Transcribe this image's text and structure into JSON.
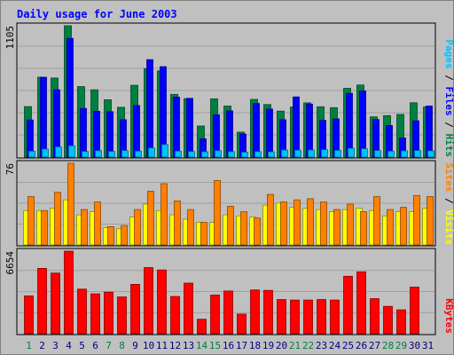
{
  "title": "Daily usage for June 2003",
  "chart_data": [
    {
      "type": "bar",
      "panel": "hits-files-pages",
      "max_label": "1105",
      "ylim": [
        0,
        1105
      ],
      "series": [
        {
          "name": "Hits",
          "color": "#008040",
          "values": [
            425,
            672,
            665,
            1105,
            593,
            566,
            482,
            419,
            604,
            743,
            725,
            528,
            491,
            261,
            490,
            429,
            210,
            485,
            442,
            387,
            421,
            456,
            423,
            416,
            579,
            606,
            338,
            349,
            359,
            457,
            422
          ]
        },
        {
          "name": "Files",
          "color": "#0000ff",
          "values": [
            312,
            671,
            567,
            999,
            409,
            385,
            382,
            314,
            434,
            820,
            761,
            505,
            494,
            154,
            356,
            389,
            194,
            451,
            404,
            314,
            506,
            446,
            309,
            321,
            536,
            556,
            316,
            266,
            161,
            305,
            430
          ]
        },
        {
          "name": "Pages",
          "color": "#00c0ff",
          "values": [
            49,
            68,
            86,
            95,
            48,
            54,
            48,
            55,
            50,
            77,
            105,
            50,
            47,
            45,
            54,
            46,
            41,
            46,
            44,
            60,
            58,
            60,
            63,
            56,
            74,
            70,
            55,
            50,
            53,
            55,
            53
          ]
        }
      ]
    },
    {
      "type": "bar",
      "panel": "visits-sites",
      "max_label": "76",
      "ylim": [
        0,
        76
      ],
      "series": [
        {
          "name": "Visits",
          "color": "#ffff00",
          "values": [
            32,
            32,
            34,
            42,
            28,
            31,
            16,
            15,
            26,
            38,
            32,
            28,
            24,
            21,
            21,
            28,
            27,
            26,
            37,
            39,
            35,
            34,
            33,
            31,
            33,
            34,
            32,
            27,
            31,
            31,
            34
          ]
        },
        {
          "name": "Sites",
          "color": "#ff8000",
          "values": [
            45,
            32,
            49,
            76,
            33,
            40,
            17,
            18,
            33,
            50,
            57,
            41,
            33,
            21,
            60,
            36,
            31,
            25,
            47,
            40,
            42,
            43,
            40,
            33,
            38,
            31,
            45,
            33,
            35,
            46,
            45
          ]
        }
      ]
    },
    {
      "type": "bar",
      "panel": "kbytes",
      "max_label": "6654",
      "ylim": [
        0,
        6654
      ],
      "series": [
        {
          "name": "KBytes",
          "color": "#ff0000",
          "values": [
            3045,
            5268,
            4890,
            6654,
            3594,
            3216,
            3347,
            2964,
            3981,
            5329,
            5136,
            3000,
            4076,
            1166,
            3120,
            3444,
            1581,
            3528,
            3491,
            2756,
            2709,
            2709,
            2756,
            2712,
            4629,
            4985,
            2824,
            2204,
            1922,
            3753,
            0
          ]
        }
      ]
    }
  ],
  "x_labels": [
    "1",
    "2",
    "3",
    "4",
    "5",
    "6",
    "7",
    "8",
    "9",
    "10",
    "11",
    "12",
    "13",
    "14",
    "15",
    "16",
    "17",
    "18",
    "19",
    "20",
    "21",
    "22",
    "23",
    "24",
    "25",
    "26",
    "27",
    "28",
    "29",
    "30",
    "31"
  ],
  "weekend_days": [
    1,
    7,
    8,
    14,
    15,
    21,
    22,
    28,
    29
  ],
  "legend_separator": "/",
  "colors": {
    "background": "#c0c0c0",
    "plot_background": "#c0c0c0",
    "grid": "#a0a0a0",
    "title": "#0000ff",
    "weekday_label": "#000080",
    "weekend_label": "#008040"
  }
}
